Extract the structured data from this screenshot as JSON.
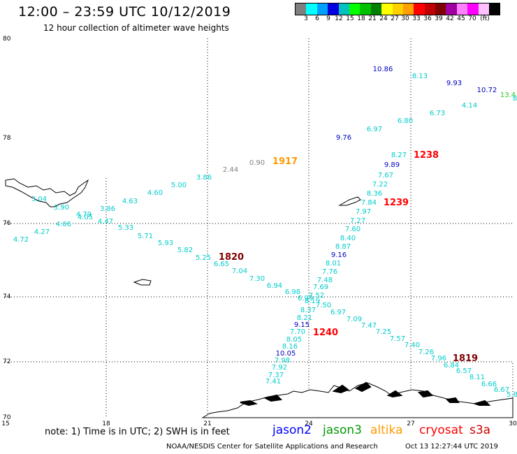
{
  "title": "12:00 – 23:59 UTC 10/12/2019",
  "subtitle": "12 hour collection of altimeter wave heights",
  "colorbar": {
    "colors": [
      "#7f7f7f",
      "#00ffff",
      "#00a0ff",
      "#0000e0",
      "#00c0c0",
      "#00ff00",
      "#00c000",
      "#008000",
      "#ffff00",
      "#ffd000",
      "#ffa000",
      "#ff0000",
      "#c00000",
      "#800000",
      "#a000a0",
      "#ff80ff",
      "#ff00ff",
      "#ffc0ff",
      "#000000"
    ],
    "labels": [
      "3",
      "6",
      "9",
      "12",
      "15",
      "18",
      "21",
      "24",
      "27",
      "30",
      "33",
      "36",
      "39",
      "42",
      "45",
      "70",
      "(ft)"
    ]
  },
  "axes": {
    "lon": [
      "15",
      "18",
      "21",
      "24",
      "27",
      "30"
    ],
    "lat": [
      "80",
      "78",
      "76",
      "74",
      "72",
      "70"
    ]
  },
  "passes": [
    {
      "label": "1917",
      "color": "#ff9900"
    },
    {
      "label": "1238",
      "color": "#ff0000"
    },
    {
      "label": "1239",
      "color": "#ff0000"
    },
    {
      "label": "1820",
      "color": "#800000"
    },
    {
      "label": "1240",
      "color": "#ff0000"
    },
    {
      "label": "1819",
      "color": "#800000"
    }
  ],
  "wave_heights": [
    {
      "v": "10.86",
      "c": "#0000c0"
    },
    {
      "v": "8.13",
      "c": "#00cccc"
    },
    {
      "v": "9.93",
      "c": "#0000c0"
    },
    {
      "v": "10.72",
      "c": "#0000c0"
    },
    {
      "v": "13.4",
      "c": "#22cc22"
    },
    {
      "v": "8",
      "c": "#00cccc"
    },
    {
      "v": "6.73",
      "c": "#00cccc"
    },
    {
      "v": "4.14",
      "c": "#00cccc"
    },
    {
      "v": "6.80",
      "c": "#00cccc"
    },
    {
      "v": "6.97",
      "c": "#00cccc"
    },
    {
      "v": "9.76",
      "c": "#0000c0"
    },
    {
      "v": "8.27",
      "c": "#00cccc"
    },
    {
      "v": "9.89",
      "c": "#0000c0"
    },
    {
      "v": "7.67",
      "c": "#00cccc"
    },
    {
      "v": "7.22",
      "c": "#00cccc"
    },
    {
      "v": "8.36",
      "c": "#00cccc"
    },
    {
      "v": "7.84",
      "c": "#00cccc"
    },
    {
      "v": "7.97",
      "c": "#00cccc"
    },
    {
      "v": "7.27",
      "c": "#00cccc"
    },
    {
      "v": "7.60",
      "c": "#00cccc"
    },
    {
      "v": "8.40",
      "c": "#00cccc"
    },
    {
      "v": "8.87",
      "c": "#00cccc"
    },
    {
      "v": "9.16",
      "c": "#0000c0"
    },
    {
      "v": "8.01",
      "c": "#00cccc"
    },
    {
      "v": "7.76",
      "c": "#00cccc"
    },
    {
      "v": "7.48",
      "c": "#00cccc"
    },
    {
      "v": "7.69",
      "c": "#00cccc"
    },
    {
      "v": "7.52",
      "c": "#00cccc"
    },
    {
      "v": "6.99",
      "c": "#00cccc"
    },
    {
      "v": "8.19",
      "c": "#00cccc"
    },
    {
      "v": "7.50",
      "c": "#00cccc"
    },
    {
      "v": "8.37",
      "c": "#00cccc"
    },
    {
      "v": "8.21",
      "c": "#00cccc"
    },
    {
      "v": "9.15",
      "c": "#0000c0"
    },
    {
      "v": "7.70",
      "c": "#00cccc"
    },
    {
      "v": "8.05",
      "c": "#00cccc"
    },
    {
      "v": "8.16",
      "c": "#00cccc"
    },
    {
      "v": "10.05",
      "c": "#0000c0"
    },
    {
      "v": "7.98",
      "c": "#00cccc"
    },
    {
      "v": "7.92",
      "c": "#00cccc"
    },
    {
      "v": "7.37",
      "c": "#00cccc"
    },
    {
      "v": "7.41",
      "c": "#00cccc"
    },
    {
      "v": "0.90",
      "c": "#7f7f7f"
    },
    {
      "v": "2.44",
      "c": "#7f7f7f"
    },
    {
      "v": "3.86",
      "c": "#00cccc"
    },
    {
      "v": "5.00",
      "c": "#00cccc"
    },
    {
      "v": "4.60",
      "c": "#00cccc"
    },
    {
      "v": "4.63",
      "c": "#00cccc"
    },
    {
      "v": "3.86",
      "c": "#00cccc"
    },
    {
      "v": "4.79",
      "c": "#00cccc"
    },
    {
      "v": "4.05",
      "c": "#00cccc"
    },
    {
      "v": "3.04",
      "c": "#00cccc"
    },
    {
      "v": "3.90",
      "c": "#00cccc"
    },
    {
      "v": "4.47",
      "c": "#00cccc"
    },
    {
      "v": "4.06",
      "c": "#00cccc"
    },
    {
      "v": "4.27",
      "c": "#00cccc"
    },
    {
      "v": "4.72",
      "c": "#00cccc"
    },
    {
      "v": "5.33",
      "c": "#00cccc"
    },
    {
      "v": "5.71",
      "c": "#00cccc"
    },
    {
      "v": "5.93",
      "c": "#00cccc"
    },
    {
      "v": "5.82",
      "c": "#00cccc"
    },
    {
      "v": "5.25",
      "c": "#00cccc"
    },
    {
      "v": "6.65",
      "c": "#00cccc"
    },
    {
      "v": "7.04",
      "c": "#00cccc"
    },
    {
      "v": "7.30",
      "c": "#00cccc"
    },
    {
      "v": "6.94",
      "c": "#00cccc"
    },
    {
      "v": "6.98",
      "c": "#00cccc"
    },
    {
      "v": "6.97",
      "c": "#00cccc"
    },
    {
      "v": "7.09",
      "c": "#00cccc"
    },
    {
      "v": "7.47",
      "c": "#00cccc"
    },
    {
      "v": "7.25",
      "c": "#00cccc"
    },
    {
      "v": "7.57",
      "c": "#00cccc"
    },
    {
      "v": "7.40",
      "c": "#00cccc"
    },
    {
      "v": "7.26",
      "c": "#00cccc"
    },
    {
      "v": "7.96",
      "c": "#00cccc"
    },
    {
      "v": "6.84",
      "c": "#00cccc"
    },
    {
      "v": "6.57",
      "c": "#00cccc"
    },
    {
      "v": "8.11",
      "c": "#00cccc"
    },
    {
      "v": "6.66",
      "c": "#00cccc"
    },
    {
      "v": "6.67",
      "c": "#00cccc"
    },
    {
      "v": "5.8",
      "c": "#00cccc"
    }
  ],
  "note": "note: 1) Time is in UTC; 2) SWH is in feet",
  "legend": [
    {
      "label": "jason2",
      "color": "#0000ff"
    },
    {
      "label": "jason3",
      "color": "#009900"
    },
    {
      "label": "altika",
      "color": "#ff9900"
    },
    {
      "label": "cryosat",
      "color": "#ff0000"
    },
    {
      "label": "s3a",
      "color": "#cc0000"
    }
  ],
  "footer": "NOAA/NESDIS Center for Satellite Applications and Research",
  "timestamp": "Oct 13 12:27:44 UTC 2019"
}
